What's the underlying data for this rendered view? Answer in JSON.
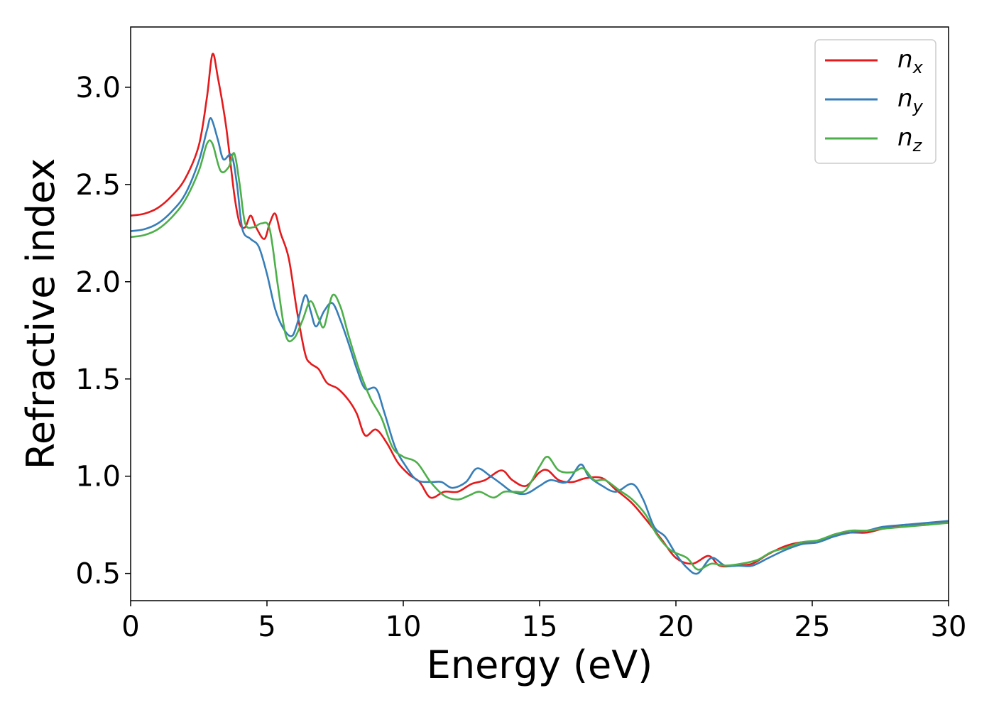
{
  "chart_data": {
    "type": "line",
    "xlabel": "Energy (eV)",
    "ylabel": "Refractive index",
    "xlim": [
      0,
      30
    ],
    "ylim": [
      0.36,
      3.31
    ],
    "x_ticks": [
      "0",
      "5",
      "10",
      "15",
      "20",
      "25",
      "30"
    ],
    "y_ticks": [
      "0.5",
      "1.0",
      "1.5",
      "2.0",
      "2.5",
      "3.0"
    ],
    "grid": false,
    "legend_position": "top-right",
    "colors": {
      "n_x": "#e41a1c",
      "n_y": "#377eb8",
      "n_z": "#4daf4a"
    },
    "series": [
      {
        "name": "n_x",
        "legend_main": "n",
        "legend_sub": "x",
        "color": "#e41a1c",
        "points": [
          [
            0,
            2.34
          ],
          [
            0.5,
            2.35
          ],
          [
            1,
            2.38
          ],
          [
            1.5,
            2.44
          ],
          [
            2,
            2.53
          ],
          [
            2.5,
            2.7
          ],
          [
            2.8,
            2.95
          ],
          [
            3.0,
            3.17
          ],
          [
            3.2,
            3.05
          ],
          [
            3.5,
            2.8
          ],
          [
            3.8,
            2.45
          ],
          [
            4.0,
            2.3
          ],
          [
            4.2,
            2.28
          ],
          [
            4.4,
            2.34
          ],
          [
            4.6,
            2.28
          ],
          [
            4.9,
            2.22
          ],
          [
            5.1,
            2.3
          ],
          [
            5.3,
            2.35
          ],
          [
            5.5,
            2.25
          ],
          [
            5.8,
            2.12
          ],
          [
            6.1,
            1.85
          ],
          [
            6.4,
            1.63
          ],
          [
            6.6,
            1.58
          ],
          [
            6.9,
            1.55
          ],
          [
            7.2,
            1.48
          ],
          [
            7.6,
            1.45
          ],
          [
            8.0,
            1.39
          ],
          [
            8.3,
            1.32
          ],
          [
            8.6,
            1.21
          ],
          [
            9.0,
            1.24
          ],
          [
            9.4,
            1.17
          ],
          [
            9.8,
            1.07
          ],
          [
            10.2,
            1.01
          ],
          [
            10.6,
            0.97
          ],
          [
            11.0,
            0.89
          ],
          [
            11.5,
            0.92
          ],
          [
            12.0,
            0.92
          ],
          [
            12.5,
            0.96
          ],
          [
            13.0,
            0.98
          ],
          [
            13.6,
            1.03
          ],
          [
            14.0,
            0.98
          ],
          [
            14.5,
            0.95
          ],
          [
            15.0,
            1.02
          ],
          [
            15.3,
            1.03
          ],
          [
            15.7,
            0.98
          ],
          [
            16.2,
            0.97
          ],
          [
            16.7,
            0.99
          ],
          [
            17.3,
            0.99
          ],
          [
            17.8,
            0.93
          ],
          [
            18.4,
            0.86
          ],
          [
            19.0,
            0.76
          ],
          [
            19.5,
            0.67
          ],
          [
            20.0,
            0.58
          ],
          [
            20.6,
            0.55
          ],
          [
            21.2,
            0.59
          ],
          [
            21.6,
            0.54
          ],
          [
            22.2,
            0.54
          ],
          [
            22.8,
            0.55
          ],
          [
            23.4,
            0.6
          ],
          [
            24.0,
            0.64
          ],
          [
            24.6,
            0.66
          ],
          [
            25.2,
            0.66
          ],
          [
            25.8,
            0.7
          ],
          [
            26.4,
            0.71
          ],
          [
            27.0,
            0.71
          ],
          [
            27.6,
            0.73
          ],
          [
            28.4,
            0.75
          ],
          [
            29.2,
            0.75
          ],
          [
            30.0,
            0.77
          ]
        ]
      },
      {
        "name": "n_y",
        "legend_main": "n",
        "legend_sub": "y",
        "color": "#377eb8",
        "points": [
          [
            0,
            2.26
          ],
          [
            0.5,
            2.27
          ],
          [
            1,
            2.3
          ],
          [
            1.5,
            2.36
          ],
          [
            2,
            2.45
          ],
          [
            2.5,
            2.62
          ],
          [
            2.8,
            2.78
          ],
          [
            2.95,
            2.84
          ],
          [
            3.2,
            2.73
          ],
          [
            3.4,
            2.63
          ],
          [
            3.7,
            2.65
          ],
          [
            3.9,
            2.5
          ],
          [
            4.1,
            2.27
          ],
          [
            4.4,
            2.22
          ],
          [
            4.7,
            2.18
          ],
          [
            5.0,
            2.04
          ],
          [
            5.3,
            1.86
          ],
          [
            5.6,
            1.76
          ],
          [
            5.9,
            1.72
          ],
          [
            6.1,
            1.78
          ],
          [
            6.4,
            1.93
          ],
          [
            6.6,
            1.85
          ],
          [
            6.8,
            1.77
          ],
          [
            7.1,
            1.85
          ],
          [
            7.4,
            1.89
          ],
          [
            7.7,
            1.8
          ],
          [
            8.0,
            1.68
          ],
          [
            8.3,
            1.55
          ],
          [
            8.6,
            1.45
          ],
          [
            9.0,
            1.45
          ],
          [
            9.3,
            1.33
          ],
          [
            9.7,
            1.15
          ],
          [
            10.1,
            1.05
          ],
          [
            10.5,
            0.98
          ],
          [
            11.0,
            0.97
          ],
          [
            11.4,
            0.97
          ],
          [
            11.8,
            0.94
          ],
          [
            12.3,
            0.97
          ],
          [
            12.7,
            1.04
          ],
          [
            13.2,
            1.0
          ],
          [
            13.6,
            0.96
          ],
          [
            14.0,
            0.92
          ],
          [
            14.5,
            0.91
          ],
          [
            15.0,
            0.95
          ],
          [
            15.4,
            0.98
          ],
          [
            16.0,
            0.97
          ],
          [
            16.5,
            1.06
          ],
          [
            16.8,
            1.0
          ],
          [
            17.3,
            0.95
          ],
          [
            17.8,
            0.92
          ],
          [
            18.4,
            0.96
          ],
          [
            18.8,
            0.88
          ],
          [
            19.2,
            0.74
          ],
          [
            19.6,
            0.69
          ],
          [
            20.0,
            0.6
          ],
          [
            20.4,
            0.53
          ],
          [
            20.8,
            0.5
          ],
          [
            21.3,
            0.58
          ],
          [
            21.8,
            0.54
          ],
          [
            22.3,
            0.54
          ],
          [
            22.8,
            0.54
          ],
          [
            23.4,
            0.58
          ],
          [
            24.0,
            0.62
          ],
          [
            24.6,
            0.65
          ],
          [
            25.2,
            0.66
          ],
          [
            25.8,
            0.69
          ],
          [
            26.4,
            0.71
          ],
          [
            27.0,
            0.72
          ],
          [
            27.6,
            0.74
          ],
          [
            28.4,
            0.75
          ],
          [
            29.2,
            0.76
          ],
          [
            30.0,
            0.77
          ]
        ]
      },
      {
        "name": "n_z",
        "legend_main": "n",
        "legend_sub": "z",
        "color": "#4daf4a",
        "points": [
          [
            0,
            2.23
          ],
          [
            0.5,
            2.24
          ],
          [
            1,
            2.27
          ],
          [
            1.5,
            2.33
          ],
          [
            2,
            2.42
          ],
          [
            2.5,
            2.57
          ],
          [
            2.8,
            2.71
          ],
          [
            3.0,
            2.71
          ],
          [
            3.3,
            2.57
          ],
          [
            3.6,
            2.59
          ],
          [
            3.8,
            2.66
          ],
          [
            4.0,
            2.5
          ],
          [
            4.2,
            2.3
          ],
          [
            4.5,
            2.28
          ],
          [
            4.8,
            2.3
          ],
          [
            5.1,
            2.27
          ],
          [
            5.4,
            1.98
          ],
          [
            5.7,
            1.72
          ],
          [
            6.0,
            1.71
          ],
          [
            6.3,
            1.8
          ],
          [
            6.6,
            1.9
          ],
          [
            6.9,
            1.81
          ],
          [
            7.1,
            1.77
          ],
          [
            7.4,
            1.93
          ],
          [
            7.7,
            1.87
          ],
          [
            8.0,
            1.72
          ],
          [
            8.4,
            1.54
          ],
          [
            8.8,
            1.4
          ],
          [
            9.2,
            1.3
          ],
          [
            9.6,
            1.15
          ],
          [
            10.0,
            1.1
          ],
          [
            10.5,
            1.07
          ],
          [
            11.0,
            0.97
          ],
          [
            11.5,
            0.9
          ],
          [
            12.0,
            0.88
          ],
          [
            12.4,
            0.9
          ],
          [
            12.8,
            0.92
          ],
          [
            13.3,
            0.89
          ],
          [
            13.7,
            0.92
          ],
          [
            14.1,
            0.92
          ],
          [
            14.5,
            0.93
          ],
          [
            15.0,
            1.05
          ],
          [
            15.3,
            1.1
          ],
          [
            15.7,
            1.03
          ],
          [
            16.2,
            1.02
          ],
          [
            16.6,
            1.04
          ],
          [
            17.0,
            0.98
          ],
          [
            17.4,
            0.98
          ],
          [
            17.9,
            0.93
          ],
          [
            18.4,
            0.88
          ],
          [
            18.9,
            0.8
          ],
          [
            19.3,
            0.7
          ],
          [
            19.8,
            0.62
          ],
          [
            20.4,
            0.58
          ],
          [
            20.8,
            0.52
          ],
          [
            21.3,
            0.55
          ],
          [
            21.8,
            0.54
          ],
          [
            22.4,
            0.55
          ],
          [
            23.0,
            0.57
          ],
          [
            23.5,
            0.61
          ],
          [
            24.0,
            0.63
          ],
          [
            24.6,
            0.66
          ],
          [
            25.2,
            0.67
          ],
          [
            25.8,
            0.7
          ],
          [
            26.4,
            0.72
          ],
          [
            27.0,
            0.72
          ],
          [
            27.6,
            0.73
          ],
          [
            28.4,
            0.74
          ],
          [
            29.2,
            0.75
          ],
          [
            30.0,
            0.76
          ]
        ]
      }
    ]
  }
}
